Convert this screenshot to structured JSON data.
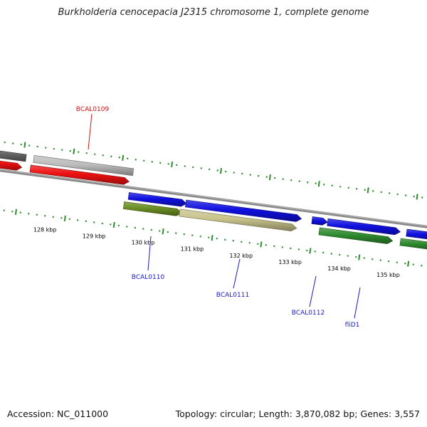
{
  "title": "Burkholderia cenocepacia J2315 chromosome 1, complete genome",
  "footer": {
    "accession": "Accession: NC_011000",
    "topology": "Topology: circular;",
    "length": "Length: 3,870,082 bp;",
    "genes": "Genes: 3,557"
  },
  "colors": {
    "backbone": "#8a8a8a",
    "tick": "#2e8b2e",
    "tick_label": "#000000",
    "label_blue": "#1a1acc",
    "label_red": "#cc1111",
    "gene_red": "#ee1111",
    "gene_blue": "#1010e0",
    "gene_olive": "#6b8e23",
    "gene_khaki": "#c8c28a",
    "gene_green": "#2e8b2e",
    "gene_gray": "#bdbdbd",
    "gene_dark_gray": "#666666"
  },
  "scale": {
    "unit": "kbp",
    "ticks": [
      "128 kbp",
      "129 kbp",
      "130 kbp",
      "131 kbp",
      "132 kbp",
      "133 kbp",
      "134 kbp",
      "135 kbp"
    ]
  },
  "genes": [
    {
      "label": "",
      "strand": "forward",
      "color": "gene_dark_gray"
    },
    {
      "label": "",
      "strand": "reverse",
      "color": "gene_red"
    },
    {
      "label": "",
      "strand": "forward",
      "color": "gene_gray"
    },
    {
      "label": "BCAL0109",
      "strand": "reverse",
      "color": "gene_red"
    },
    {
      "label": "",
      "strand": "forward",
      "color": "gene_blue"
    },
    {
      "label": "BCAL0110",
      "strand": "reverse",
      "color": "gene_olive"
    },
    {
      "label": "",
      "strand": "forward",
      "color": "gene_blue"
    },
    {
      "label": "BCAL0111",
      "strand": "reverse",
      "color": "gene_khaki"
    },
    {
      "label": "BCAL0112",
      "strand": "forward",
      "color": "gene_blue"
    },
    {
      "label": "",
      "strand": "forward",
      "color": "gene_blue"
    },
    {
      "label": "fliD1",
      "strand": "reverse",
      "color": "gene_green"
    },
    {
      "label": "",
      "strand": "forward",
      "color": "gene_blue"
    },
    {
      "label": "",
      "strand": "reverse",
      "color": "gene_green"
    }
  ]
}
